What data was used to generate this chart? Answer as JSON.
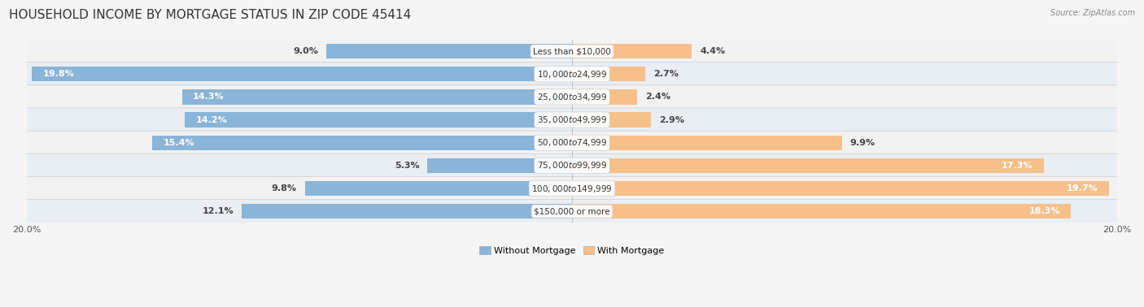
{
  "title": "HOUSEHOLD INCOME BY MORTGAGE STATUS IN ZIP CODE 45414",
  "source": "Source: ZipAtlas.com",
  "categories": [
    "Less than $10,000",
    "$10,000 to $24,999",
    "$25,000 to $34,999",
    "$35,000 to $49,999",
    "$50,000 to $74,999",
    "$75,000 to $99,999",
    "$100,000 to $149,999",
    "$150,000 or more"
  ],
  "without_mortgage": [
    9.0,
    19.8,
    14.3,
    14.2,
    15.4,
    5.3,
    9.8,
    12.1
  ],
  "with_mortgage": [
    4.4,
    2.7,
    2.4,
    2.9,
    9.9,
    17.3,
    19.7,
    18.3
  ],
  "color_without": "#8ab4d8",
  "color_with": "#f5c08a",
  "row_color_light": "#f2f2f2",
  "row_color_mid": "#e8eef4",
  "axis_limit": 20.0,
  "legend_without": "Without Mortgage",
  "legend_with": "With Mortgage",
  "title_fontsize": 11,
  "label_fontsize": 8,
  "category_fontsize": 7.5,
  "axis_label_fontsize": 8
}
